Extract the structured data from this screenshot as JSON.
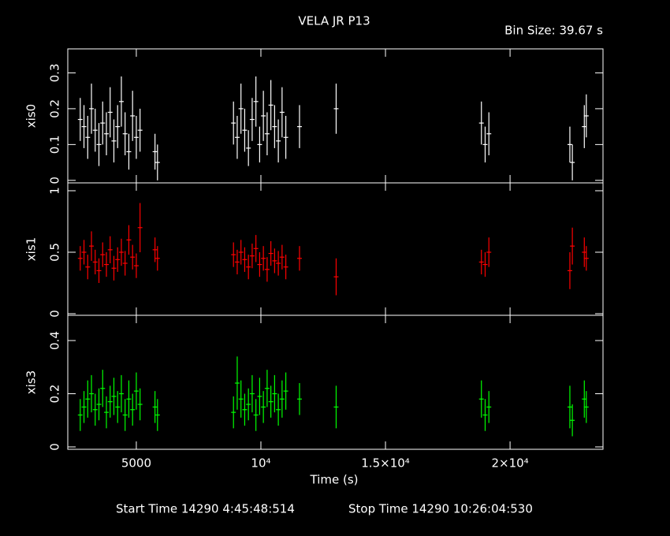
{
  "title": "VELA JR P13",
  "bin_size": "Bin Size: 39.67 s",
  "start_time": "Start Time 14290  4:45:48:514",
  "stop_time": "Stop Time 14290 10:26:04:530",
  "chart_data": {
    "type": "errorbar",
    "xlabel": "Time (s)",
    "xlim": [
      2250,
      23730
    ],
    "xticks": [
      {
        "value": 5000,
        "label": "5000"
      },
      {
        "value": 10000,
        "label": "10⁴"
      },
      {
        "value": 15000,
        "label": "1.5×10⁴"
      },
      {
        "value": 20000,
        "label": "2×10⁴"
      }
    ],
    "x": [
      2750,
      2900,
      3050,
      3200,
      3350,
      3500,
      3650,
      3800,
      3950,
      4100,
      4250,
      4400,
      4550,
      4700,
      4850,
      5000,
      5150,
      5750,
      5850,
      8900,
      9050,
      9200,
      9350,
      9500,
      9650,
      9800,
      9950,
      10100,
      10250,
      10400,
      10550,
      10700,
      10850,
      11000,
      11550,
      13020,
      18850,
      19000,
      19150,
      22400,
      22500,
      22980,
      23060
    ],
    "panels": [
      {
        "ylabel": "xis0",
        "color": "#ffffff",
        "ylim": [
          -0.007,
          0.367
        ],
        "yticks": [
          0,
          0.1,
          0.2,
          0.3
        ],
        "values": [
          0.17,
          0.15,
          0.12,
          0.2,
          0.14,
          0.1,
          0.16,
          0.13,
          0.19,
          0.11,
          0.15,
          0.22,
          0.13,
          0.08,
          0.18,
          0.12,
          0.14,
          0.08,
          0.05,
          0.16,
          0.12,
          0.2,
          0.14,
          0.09,
          0.17,
          0.22,
          0.1,
          0.18,
          0.13,
          0.21,
          0.15,
          0.11,
          0.19,
          0.12,
          0.15,
          0.2,
          0.16,
          0.1,
          0.13,
          0.1,
          0.05,
          0.15,
          0.18
        ],
        "errors": [
          0.06,
          0.06,
          0.06,
          0.07,
          0.06,
          0.06,
          0.06,
          0.06,
          0.07,
          0.06,
          0.06,
          0.07,
          0.06,
          0.05,
          0.07,
          0.06,
          0.06,
          0.05,
          0.05,
          0.06,
          0.06,
          0.07,
          0.06,
          0.05,
          0.06,
          0.07,
          0.05,
          0.07,
          0.06,
          0.07,
          0.06,
          0.06,
          0.07,
          0.06,
          0.06,
          0.07,
          0.06,
          0.05,
          0.06,
          0.05,
          0.05,
          0.06,
          0.06
        ]
      },
      {
        "ylabel": "xis1",
        "color": "#ff0000",
        "ylim": [
          -0.013,
          1.064
        ],
        "yticks": [
          0,
          0.5,
          1
        ],
        "values": [
          0.45,
          0.5,
          0.38,
          0.55,
          0.42,
          0.35,
          0.48,
          0.4,
          0.52,
          0.37,
          0.44,
          0.5,
          0.41,
          0.6,
          0.46,
          0.39,
          0.7,
          0.52,
          0.45,
          0.48,
          0.42,
          0.5,
          0.44,
          0.38,
          0.47,
          0.53,
          0.4,
          0.45,
          0.36,
          0.49,
          0.43,
          0.41,
          0.46,
          0.38,
          0.45,
          0.3,
          0.42,
          0.4,
          0.5,
          0.35,
          0.55,
          0.5,
          0.45
        ],
        "errors": [
          0.1,
          0.1,
          0.1,
          0.12,
          0.1,
          0.1,
          0.1,
          0.1,
          0.11,
          0.1,
          0.1,
          0.11,
          0.1,
          0.12,
          0.1,
          0.1,
          0.2,
          0.1,
          0.1,
          0.1,
          0.1,
          0.1,
          0.1,
          0.1,
          0.1,
          0.11,
          0.1,
          0.1,
          0.1,
          0.1,
          0.1,
          0.1,
          0.1,
          0.1,
          0.1,
          0.15,
          0.1,
          0.1,
          0.12,
          0.15,
          0.15,
          0.12,
          0.1
        ]
      },
      {
        "ylabel": "xis3",
        "color": "#00ff00",
        "ylim": [
          -0.009,
          0.495
        ],
        "yticks": [
          0,
          0.2,
          0.4
        ],
        "values": [
          0.12,
          0.15,
          0.18,
          0.2,
          0.14,
          0.16,
          0.22,
          0.13,
          0.17,
          0.19,
          0.15,
          0.2,
          0.12,
          0.18,
          0.14,
          0.21,
          0.16,
          0.15,
          0.12,
          0.13,
          0.24,
          0.18,
          0.14,
          0.16,
          0.2,
          0.12,
          0.19,
          0.15,
          0.22,
          0.17,
          0.2,
          0.14,
          0.18,
          0.21,
          0.18,
          0.15,
          0.18,
          0.12,
          0.15,
          0.15,
          0.1,
          0.18,
          0.15
        ],
        "errors": [
          0.06,
          0.06,
          0.07,
          0.07,
          0.06,
          0.06,
          0.07,
          0.06,
          0.06,
          0.07,
          0.06,
          0.07,
          0.06,
          0.07,
          0.06,
          0.07,
          0.06,
          0.06,
          0.06,
          0.06,
          0.1,
          0.07,
          0.06,
          0.06,
          0.07,
          0.06,
          0.07,
          0.06,
          0.07,
          0.06,
          0.07,
          0.06,
          0.07,
          0.07,
          0.06,
          0.08,
          0.07,
          0.06,
          0.06,
          0.08,
          0.06,
          0.07,
          0.06
        ]
      }
    ]
  }
}
